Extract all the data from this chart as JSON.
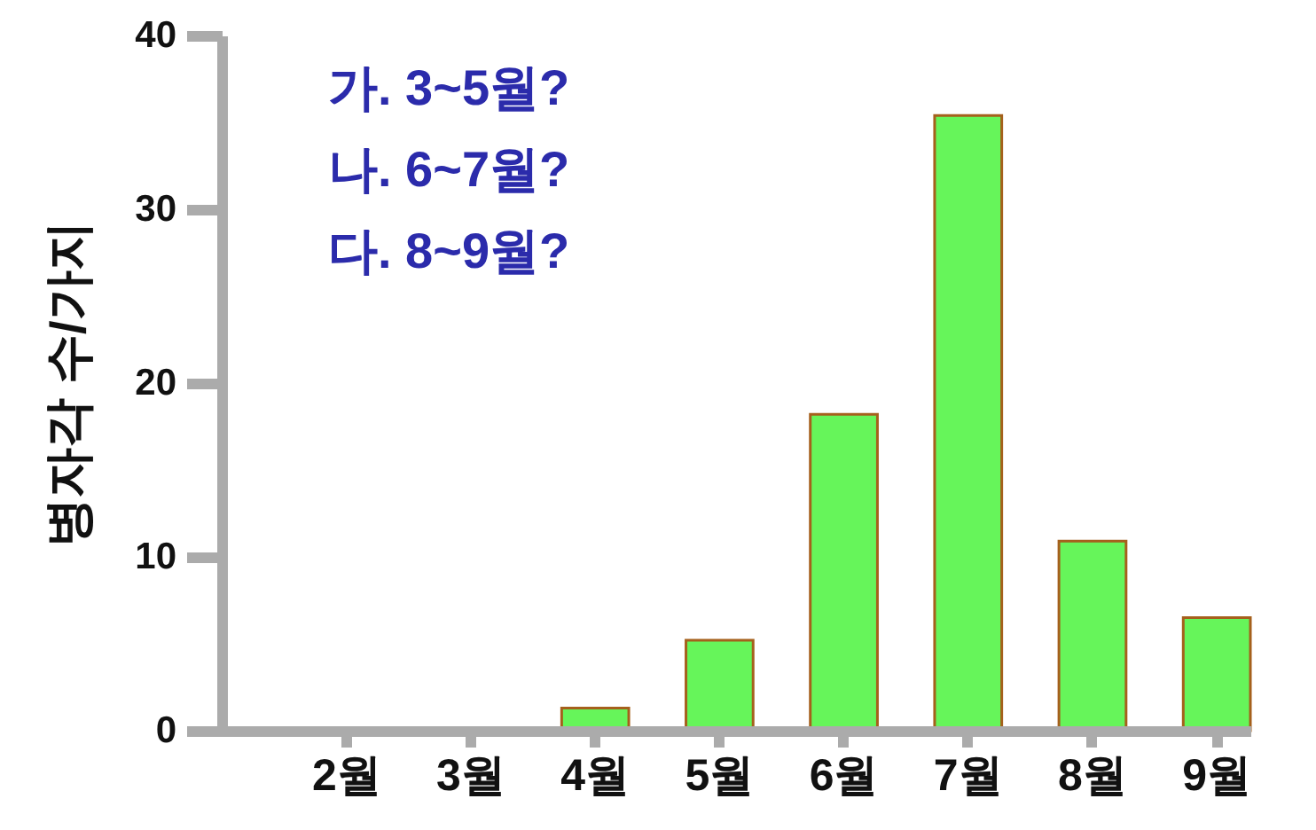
{
  "chart_data": {
    "type": "bar",
    "categories": [
      "2월",
      "3월",
      "4월",
      "5월",
      "6월",
      "7월",
      "8월",
      "9월"
    ],
    "values": [
      0,
      0,
      1.3,
      5.2,
      18.2,
      35.4,
      10.9,
      6.5
    ],
    "color": "#66f55a",
    "ylabel": "병자각 수/가지",
    "ylim": [
      0,
      40
    ],
    "yticks": [
      0,
      10,
      20,
      30,
      40
    ],
    "annotations": [
      "가. 3~5월?",
      "나. 6~7월?",
      "다. 8~9월?"
    ]
  }
}
